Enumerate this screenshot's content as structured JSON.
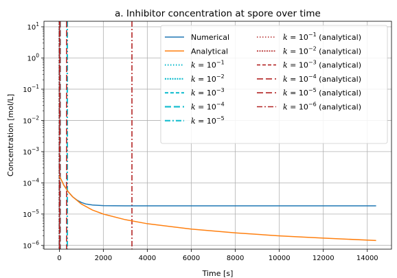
{
  "chart_data": {
    "type": "line",
    "title": "a. Inhibitor concentration at spore over time",
    "xlabel": "Time [s]",
    "ylabel": "Concentration [mol/L]",
    "xlim": [
      -700,
      15100
    ],
    "ylim": [
      7.5e-07,
      15
    ],
    "y_scale": "log",
    "grid": true,
    "legend_position": "top-right",
    "legend_columns": 2,
    "x_ticks": [
      0,
      2000,
      4000,
      6000,
      8000,
      10000,
      12000,
      14000
    ],
    "y_ticks": [
      1e-06,
      1e-05,
      0.0001,
      0.001,
      0.01,
      0.1,
      1,
      10
    ],
    "y_tick_labels": [
      {
        "base": "10",
        "exp": "−6"
      },
      {
        "base": "10",
        "exp": "−5"
      },
      {
        "base": "10",
        "exp": "−4"
      },
      {
        "base": "10",
        "exp": "−3"
      },
      {
        "base": "10",
        "exp": "−2"
      },
      {
        "base": "10",
        "exp": "−1"
      },
      {
        "base": "10",
        "exp": "0"
      },
      {
        "base": "10",
        "exp": "1"
      }
    ],
    "series": [
      {
        "name": "Numerical",
        "color": "#1f77b4",
        "style": "solid",
        "x": [
          0,
          100,
          200,
          400,
          600,
          800,
          1000,
          1200,
          1500,
          2000,
          2500,
          3000,
          4000,
          6000,
          8000,
          10000,
          12000,
          14400
        ],
        "y": [
          0.000165,
          0.00012,
          8.5e-05,
          5.2e-05,
          3.6e-05,
          2.8e-05,
          2.35e-05,
          2.1e-05,
          1.95e-05,
          1.86e-05,
          1.84e-05,
          1.83e-05,
          1.83e-05,
          1.83e-05,
          1.83e-05,
          1.83e-05,
          1.83e-05,
          1.83e-05
        ]
      },
      {
        "name": "Analytical",
        "color": "#ff7f0e",
        "style": "solid",
        "x": [
          0,
          100,
          200,
          400,
          600,
          1000,
          1500,
          2000,
          3000,
          4000,
          6000,
          8000,
          10000,
          12000,
          14400
        ],
        "y": [
          0.000165,
          0.00012,
          8.5e-05,
          5.2e-05,
          3.6e-05,
          2.1e-05,
          1.35e-05,
          1e-05,
          6.6e-06,
          4.9e-06,
          3.3e-06,
          2.5e-06,
          2e-06,
          1.7e-06,
          1.42e-06
        ]
      }
    ],
    "vlines": [
      {
        "label_base": "k = 10",
        "exp": "−1",
        "x": 0,
        "color": "#17becf",
        "style": "dotted",
        "suffix": ""
      },
      {
        "label_base": "k = 10",
        "exp": "−2",
        "x": 0,
        "color": "#17becf",
        "style": "dotted-dense",
        "suffix": ""
      },
      {
        "label_base": "k = 10",
        "exp": "−3",
        "x": 5,
        "color": "#17becf",
        "style": "dashed",
        "suffix": ""
      },
      {
        "label_base": "k = 10",
        "exp": "−4",
        "x": 35,
        "color": "#17becf",
        "style": "long-dashed",
        "suffix": ""
      },
      {
        "label_base": "k = 10",
        "exp": "−5",
        "x": 360,
        "color": "#17becf",
        "style": "dash-dot",
        "suffix": ""
      },
      {
        "label_base": "k = 10",
        "exp": "−1",
        "x": 0,
        "color": "#b22222",
        "style": "dotted",
        "suffix": " (analytical)"
      },
      {
        "label_base": "k = 10",
        "exp": "−2",
        "x": 0,
        "color": "#b22222",
        "style": "dotted-dense",
        "suffix": " (analytical)"
      },
      {
        "label_base": "k = 10",
        "exp": "−3",
        "x": 3,
        "color": "#b22222",
        "style": "dashed",
        "suffix": " (analytical)"
      },
      {
        "label_base": "k = 10",
        "exp": "−4",
        "x": 33,
        "color": "#b22222",
        "style": "long-dashed",
        "suffix": " (analytical)"
      },
      {
        "label_base": "k = 10",
        "exp": "−5",
        "x": 330,
        "color": "#b22222",
        "style": "long-dashed",
        "suffix": " (analytical)"
      },
      {
        "label_base": "k = 10",
        "exp": "−6",
        "x": 3300,
        "color": "#b22222",
        "style": "dash-dot",
        "suffix": " (analytical)"
      }
    ]
  }
}
